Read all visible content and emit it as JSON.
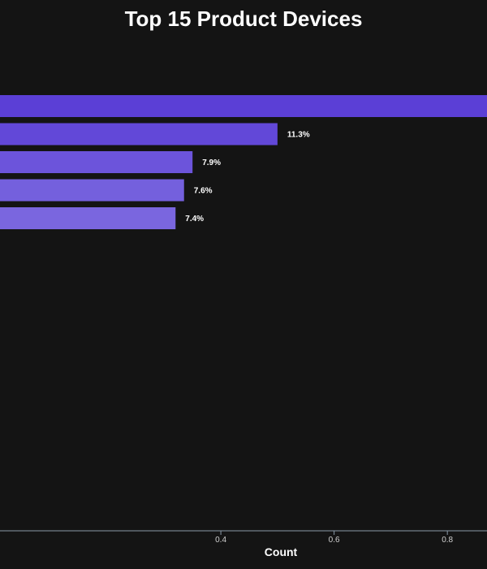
{
  "chart_data": {
    "type": "bar",
    "orientation": "horizontal",
    "title": "Top 15 Product Devices",
    "xlabel": "Count",
    "ylabel": "",
    "xlim": [
      0.01,
      0.87
    ],
    "xticks": [
      0.4,
      0.6,
      0.8
    ],
    "tick_labels": [
      "0.4",
      "0.6",
      "0.8"
    ],
    "categories": [
      "",
      "",
      "",
      "",
      ""
    ],
    "values": [
      0.9,
      0.5,
      0.35,
      0.335,
      0.32
    ],
    "labels": [
      "",
      "11.3%",
      "7.9%",
      "7.6%",
      "7.4%"
    ],
    "colors": [
      "#5b3fd6",
      "#6248d8",
      "#6c54db",
      "#7460dd",
      "#7a66df"
    ],
    "grid": false,
    "legend": "none"
  }
}
